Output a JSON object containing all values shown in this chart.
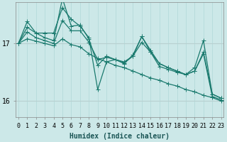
{
  "xlabel": "Humidex (Indice chaleur)",
  "bg_color": "#cce8e8",
  "line_color": "#1a7a6e",
  "grid_color_v": "#b0d8d8",
  "grid_color_h": "#b8d0d0",
  "x_ticks": [
    0,
    1,
    2,
    3,
    4,
    5,
    6,
    7,
    8,
    9,
    10,
    11,
    12,
    13,
    14,
    15,
    16,
    17,
    18,
    19,
    20,
    21,
    22,
    23
  ],
  "y_ticks": [
    16,
    17
  ],
  "ylim": [
    15.72,
    17.72
  ],
  "xlim": [
    -0.3,
    23.3
  ],
  "series": [
    [
      17.0,
      17.38,
      17.18,
      17.18,
      17.18,
      17.62,
      17.42,
      17.3,
      17.1,
      16.2,
      16.68,
      16.72,
      16.65,
      16.8,
      17.12,
      16.85,
      16.6,
      16.55,
      16.5,
      16.46,
      16.58,
      17.05,
      16.12,
      16.05
    ],
    [
      17.0,
      17.28,
      17.18,
      17.1,
      17.05,
      17.78,
      17.3,
      17.32,
      17.08,
      16.62,
      16.78,
      16.72,
      16.68,
      16.78,
      17.12,
      16.88,
      16.65,
      16.58,
      16.52,
      16.46,
      16.52,
      16.82,
      16.08,
      16.02
    ],
    [
      17.0,
      17.2,
      17.1,
      17.05,
      17.0,
      17.4,
      17.22,
      17.22,
      17.02,
      16.72,
      16.76,
      16.72,
      16.66,
      16.78,
      17.02,
      16.85,
      16.65,
      16.58,
      16.52,
      16.46,
      16.52,
      16.85,
      16.12,
      16.05
    ],
    [
      17.0,
      17.08,
      17.04,
      17.0,
      16.96,
      17.08,
      16.98,
      16.94,
      16.82,
      16.74,
      16.68,
      16.62,
      16.58,
      16.52,
      16.46,
      16.4,
      16.36,
      16.3,
      16.26,
      16.2,
      16.16,
      16.1,
      16.06,
      16.0
    ]
  ],
  "marker": "+",
  "markersize": 4,
  "linewidth": 0.9,
  "tick_fontsize": 6,
  "xlabel_fontsize": 7
}
